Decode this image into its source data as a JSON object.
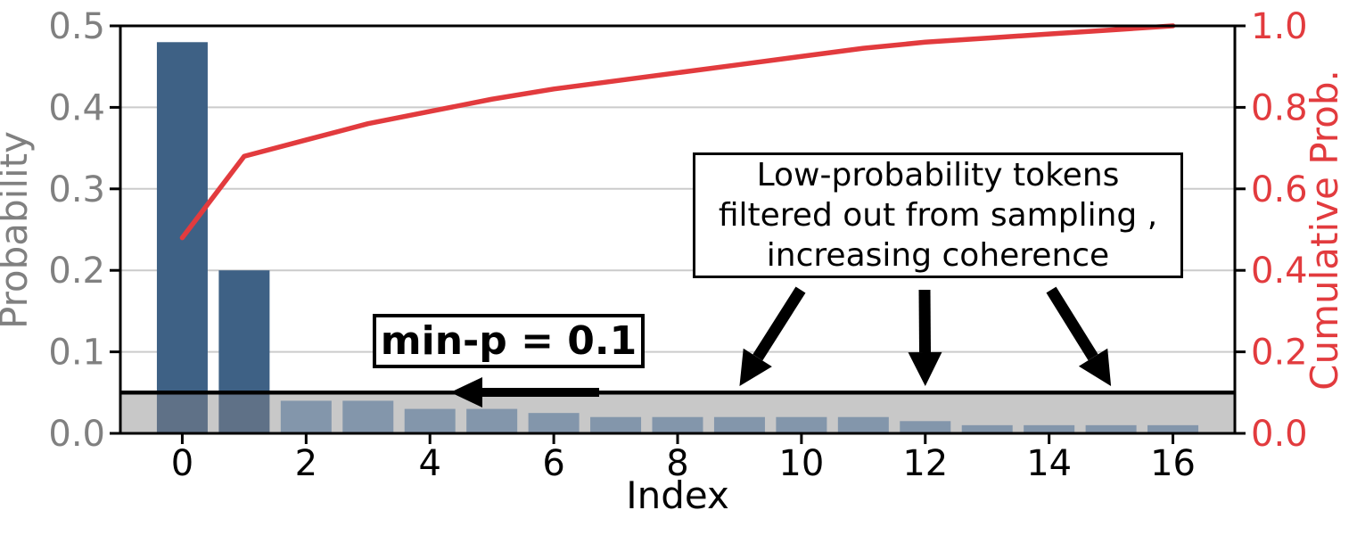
{
  "chart_data": {
    "type": "bar",
    "title": "",
    "xlabel": "Index",
    "ylabel_left": "Probability",
    "ylabel_right": "Cumulative Prob.",
    "xlim": [
      -1,
      17
    ],
    "ylim_left": [
      0,
      0.5
    ],
    "ylim_right": [
      0,
      1.0
    ],
    "x_ticks": [
      0,
      2,
      4,
      6,
      8,
      10,
      12,
      14,
      16
    ],
    "y_ticks_left": [
      "0.0",
      "0.1",
      "0.2",
      "0.3",
      "0.4",
      "0.5"
    ],
    "y_ticks_right": [
      "0.0",
      "0.2",
      "0.4",
      "0.6",
      "0.8",
      "1.0"
    ],
    "grid": "horizontal",
    "x": [
      0,
      1,
      2,
      3,
      4,
      5,
      6,
      7,
      8,
      9,
      10,
      11,
      12,
      13,
      14,
      15,
      16
    ],
    "series": [
      {
        "name": "Probability",
        "type": "bar",
        "values": [
          0.48,
          0.2,
          0.04,
          0.04,
          0.03,
          0.03,
          0.025,
          0.02,
          0.02,
          0.02,
          0.02,
          0.02,
          0.015,
          0.01,
          0.01,
          0.01,
          0.01
        ]
      },
      {
        "name": "Cumulative Prob.",
        "type": "line",
        "values": [
          0.48,
          0.68,
          0.72,
          0.76,
          0.79,
          0.82,
          0.845,
          0.865,
          0.885,
          0.905,
          0.925,
          0.945,
          0.96,
          0.97,
          0.98,
          0.99,
          1.0
        ]
      }
    ],
    "threshold": {
      "value": 0.05,
      "axis": "left"
    }
  },
  "annotations": {
    "minp_box": {
      "label": "min-p = 0.1"
    },
    "note_box": {
      "lines": [
        "Low-probability tokens",
        "filtered out from sampling ,",
        "increasing coherence"
      ]
    },
    "note_arrow_targets": [
      9,
      12,
      15
    ]
  },
  "colors": {
    "bar_above": "#3E6185",
    "bar_below_band": "#5F7187",
    "bar_filtered": "#8396AB",
    "band": "#C8C8C8",
    "cumulative_red": "#E23B3E",
    "axis_label_gray": "#808080",
    "grid_gray": "#CBCBCB",
    "black": "#000000",
    "background": "#FFFFFF"
  }
}
